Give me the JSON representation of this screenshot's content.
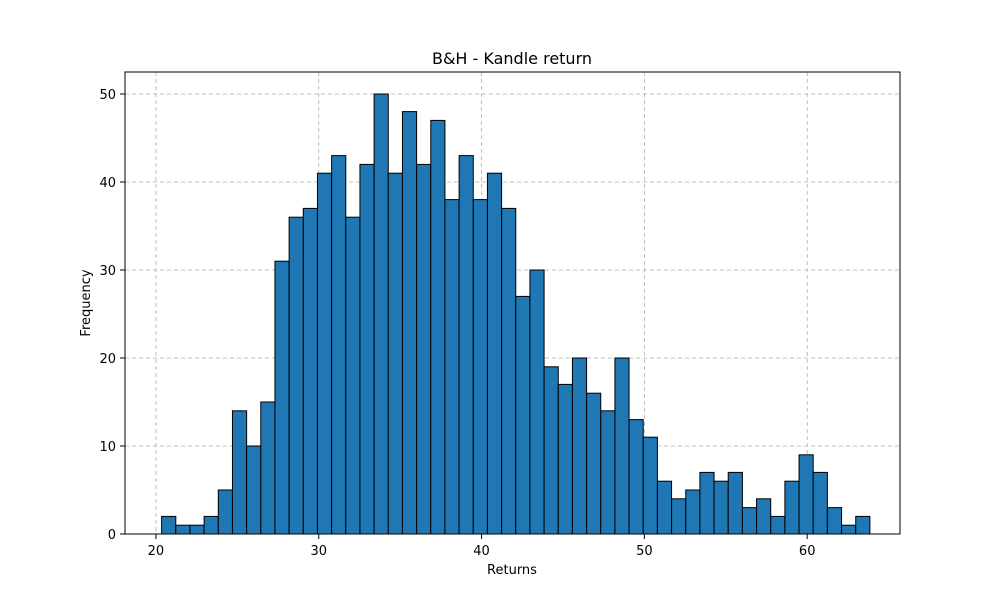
{
  "chart_data": {
    "type": "bar",
    "title": "B&H - Kandle return",
    "xlabel": "Returns",
    "ylabel": "Frequency",
    "bin_start": 20.35,
    "bin_width": 0.87,
    "values": [
      2,
      1,
      1,
      2,
      5,
      14,
      10,
      15,
      31,
      36,
      37,
      41,
      43,
      36,
      42,
      50,
      41,
      48,
      42,
      47,
      38,
      43,
      38,
      41,
      37,
      27,
      30,
      19,
      17,
      20,
      16,
      14,
      20,
      13,
      11,
      6,
      4,
      5,
      7,
      6,
      7,
      3,
      4,
      2,
      6,
      9,
      7,
      3,
      1,
      2
    ],
    "xlim": [
      18.1,
      65.7
    ],
    "ylim": [
      0,
      52.5
    ],
    "x_ticks": [
      20,
      30,
      40,
      50,
      60
    ],
    "y_ticks": [
      0,
      10,
      20,
      30,
      40,
      50
    ],
    "grid": true,
    "bar_color": "#1f77b4",
    "edge_color": "#000000"
  }
}
